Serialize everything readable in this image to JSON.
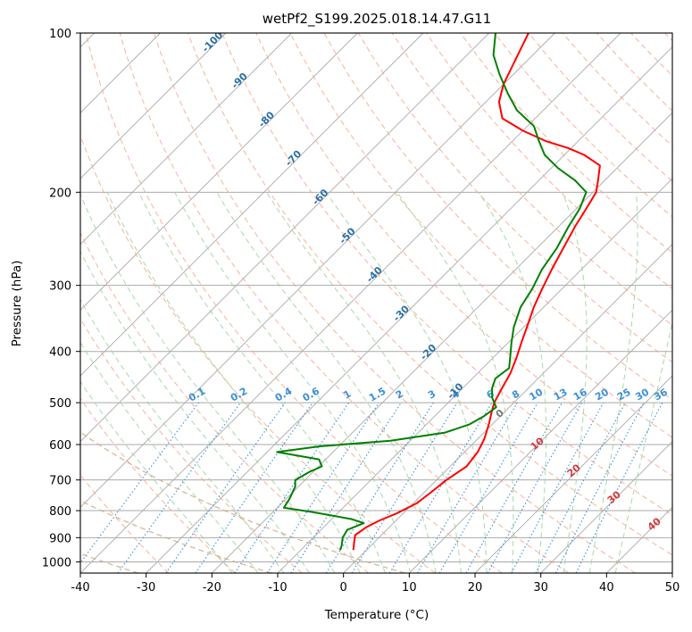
{
  "chart_data": {
    "type": "line",
    "title": "wetPf2_S199.2025.018.14.47.G11",
    "xlabel": "Temperature (°C)",
    "ylabel": "Pressure (hPa)",
    "xlim": [
      -40,
      50
    ],
    "ylim": [
      1050,
      100
    ],
    "yscale": "log",
    "x_ticks": [
      -40,
      -30,
      -20,
      -10,
      0,
      10,
      20,
      30,
      40,
      50
    ],
    "y_ticks": [
      100,
      200,
      300,
      400,
      500,
      600,
      700,
      800,
      900,
      1000
    ],
    "grid": true,
    "skew_degrees": 45,
    "colors": {
      "temperature": "#ff0000",
      "dewpoint": "#008000",
      "isotherm": "#a9a9a9",
      "dry_adiabat": "#f4a58a",
      "moist_adiabat": "#9fd49f",
      "mixing_ratio": "#3d8fd6",
      "theta_e": "#c9a77e"
    },
    "series": [
      {
        "name": "temperature",
        "points": [
          [
            -2.0,
            950
          ],
          [
            -3.0,
            920
          ],
          [
            -4.0,
            890
          ],
          [
            -3.5,
            860
          ],
          [
            -2.5,
            835
          ],
          [
            -1.0,
            810
          ],
          [
            0.5,
            775
          ],
          [
            1.0,
            740
          ],
          [
            1.5,
            700
          ],
          [
            2.5,
            660
          ],
          [
            2.0,
            620
          ],
          [
            1.0,
            585
          ],
          [
            -0.5,
            550
          ],
          [
            -2.0,
            520
          ],
          [
            -3.0,
            500
          ],
          [
            -4.0,
            470
          ],
          [
            -5.0,
            440
          ],
          [
            -6.5,
            410
          ],
          [
            -8.0,
            385
          ],
          [
            -9.5,
            360
          ],
          [
            -11.5,
            330
          ],
          [
            -13.0,
            305
          ],
          [
            -14.5,
            280
          ],
          [
            -16.0,
            255
          ],
          [
            -17.5,
            232
          ],
          [
            -18.5,
            215
          ],
          [
            -19.5,
            200
          ],
          [
            -21.0,
            190
          ],
          [
            -23.0,
            178
          ],
          [
            -27.0,
            170
          ],
          [
            -30.5,
            165
          ],
          [
            -35.0,
            160
          ],
          [
            -40.0,
            153
          ],
          [
            -45.0,
            145
          ],
          [
            -48.0,
            135
          ],
          [
            -50.0,
            125
          ],
          [
            -51.5,
            115
          ],
          [
            -54.0,
            100
          ]
        ]
      },
      {
        "name": "dewpoint",
        "points": [
          [
            -4.0,
            950
          ],
          [
            -4.5,
            930
          ],
          [
            -5.5,
            900
          ],
          [
            -6.0,
            870
          ],
          [
            -4.5,
            845
          ],
          [
            -7.0,
            830
          ],
          [
            -14.0,
            805
          ],
          [
            -19.0,
            790
          ],
          [
            -19.5,
            760
          ],
          [
            -20.5,
            720
          ],
          [
            -21.5,
            700
          ],
          [
            -20.5,
            675
          ],
          [
            -19.5,
            660
          ],
          [
            -21.0,
            640
          ],
          [
            -28.5,
            620
          ],
          [
            -23.0,
            605
          ],
          [
            -13.0,
            590
          ],
          [
            -6.0,
            570
          ],
          [
            -3.5,
            550
          ],
          [
            -2.5,
            530
          ],
          [
            -2.0,
            510
          ],
          [
            -4.0,
            490
          ],
          [
            -5.5,
            470
          ],
          [
            -6.5,
            450
          ],
          [
            -6.0,
            430
          ],
          [
            -7.5,
            410
          ],
          [
            -9.5,
            385
          ],
          [
            -11.5,
            360
          ],
          [
            -13.5,
            330
          ],
          [
            -14.5,
            305
          ],
          [
            -16.0,
            280
          ],
          [
            -17.0,
            255
          ],
          [
            -18.5,
            232
          ],
          [
            -19.5,
            215
          ],
          [
            -21.0,
            200
          ],
          [
            -24.5,
            190
          ],
          [
            -29.0,
            180
          ],
          [
            -33.0,
            170
          ],
          [
            -36.0,
            160
          ],
          [
            -39.0,
            150
          ],
          [
            -44.0,
            140
          ],
          [
            -48.0,
            130
          ],
          [
            -52.0,
            120
          ],
          [
            -56.0,
            110
          ],
          [
            -59.0,
            100
          ]
        ]
      }
    ],
    "isotherm_labels": [
      "-100",
      "-90",
      "-80",
      "-70",
      "-60",
      "-50",
      "-40",
      "-30",
      "-20",
      "-10"
    ],
    "isotherm_label_values": [
      -100,
      -90,
      -80,
      -70,
      -60,
      -50,
      -40,
      -30,
      -20,
      -10
    ],
    "mixing_ratio_labels": [
      "0.1",
      "0.2",
      "0.4",
      "0.6",
      "1",
      "1.5",
      "2",
      "3",
      "4",
      "6",
      "8",
      "10",
      "13",
      "16",
      "20",
      "25",
      "30",
      "36"
    ],
    "mixing_ratio_values": [
      0.1,
      0.2,
      0.4,
      0.6,
      1,
      1.5,
      2,
      3,
      4,
      6,
      8,
      10,
      13,
      16,
      20,
      25,
      30,
      36
    ],
    "theta_e_labels": [
      "0",
      "10",
      "20",
      "30",
      "40"
    ],
    "theta_e_values": [
      0,
      10,
      20,
      30,
      40
    ]
  }
}
